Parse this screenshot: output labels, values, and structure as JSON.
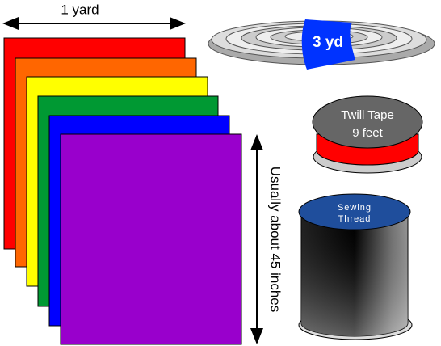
{
  "fabric": {
    "width_label": "1 yard",
    "length_label": "Usually about 45 inches"
  },
  "ribbon": {
    "label": "3 yd"
  },
  "twill_tape": {
    "label_line1": "Twill Tape",
    "label_line2": "9 feet"
  },
  "thread": {
    "label_line1": "Sewing",
    "label_line2": "Thread"
  }
}
